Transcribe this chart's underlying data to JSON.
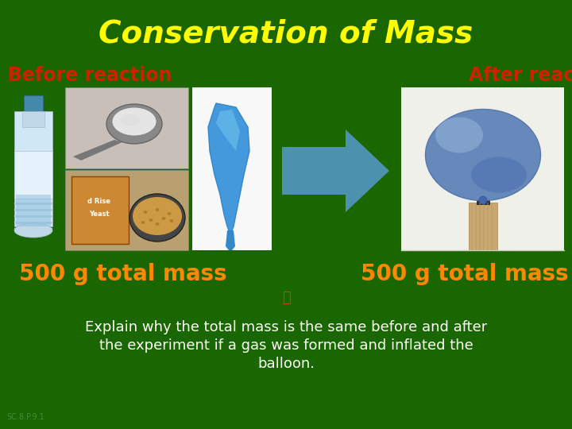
{
  "background_color": "#1a6600",
  "title": "Conservation of Mass",
  "title_color": "#ffff00",
  "title_fontsize": 28,
  "before_label": "Before reaction",
  "before_label_color": "#cc2200",
  "before_label_fontsize": 17,
  "after_label": "After reaction",
  "after_label_color": "#cc2200",
  "after_label_fontsize": 17,
  "before_mass": "500 g total mass",
  "after_mass": "500 g total mass",
  "mass_color": "#ff8800",
  "mass_fontsize": 20,
  "explain_line1": "Explain why the total mass is the same before and after",
  "explain_line2": "the experiment if a gas was formed and inflated the",
  "explain_line3": "balloon.",
  "explain_color": "#ffffff",
  "explain_fontsize": 13,
  "arrow_color": "#5599cc",
  "watermark": "SC.8.P.9.1",
  "watermark_color": "#448844"
}
